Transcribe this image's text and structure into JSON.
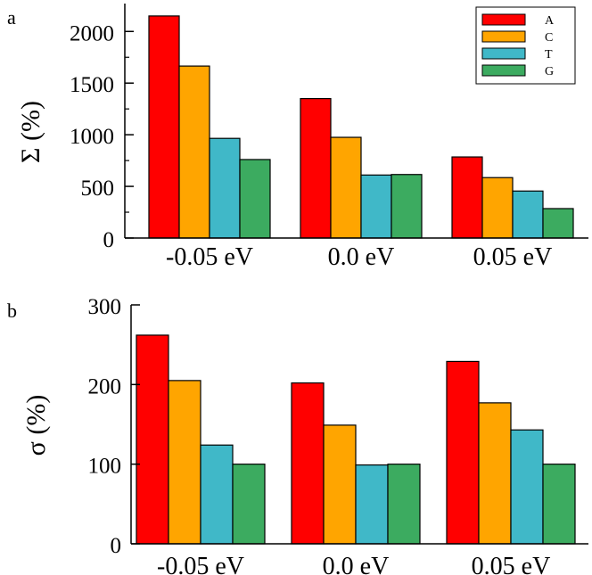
{
  "chart_data": [
    {
      "panel_label": "a",
      "type": "bar",
      "ylabel": "Σ (%)",
      "ylim": [
        0,
        2270
      ],
      "yticks": [
        "0",
        "500",
        "1000",
        "1500",
        "2000"
      ],
      "categories": [
        "-0.05 eV",
        "0.0 eV",
        "0.05 eV"
      ],
      "series": [
        {
          "name": "A",
          "values": [
            2150,
            1350,
            785
          ]
        },
        {
          "name": "C",
          "values": [
            1665,
            975,
            585
          ]
        },
        {
          "name": "T",
          "values": [
            965,
            610,
            455
          ]
        },
        {
          "name": "G",
          "values": [
            760,
            615,
            285
          ]
        }
      ],
      "legend": "top-right",
      "grid": false
    },
    {
      "panel_label": "b",
      "type": "bar",
      "ylabel": "σ (%)",
      "ylim": [
        0,
        300
      ],
      "yticks": [
        "0",
        "100",
        "200",
        "300"
      ],
      "categories": [
        "-0.05 eV",
        "0.0 eV",
        "0.05 eV"
      ],
      "series": [
        {
          "values": [
            262,
            202,
            229
          ]
        },
        {
          "values": [
            205,
            149,
            177
          ]
        },
        {
          "values": [
            124,
            99,
            143
          ]
        },
        {
          "values": [
            100,
            100,
            100
          ]
        }
      ],
      "legend": "none",
      "grid": false
    }
  ],
  "colors": [
    "#ff0000",
    "#ffa500",
    "#40b8c8",
    "#3cab60"
  ]
}
